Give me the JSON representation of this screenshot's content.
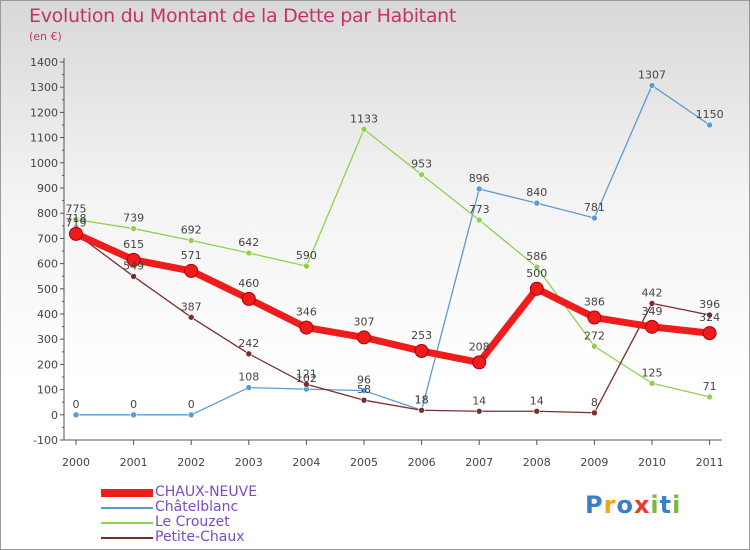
{
  "header": {
    "title": "Evolution du Montant de la Dette par Habitant",
    "subtitle": "(en €)"
  },
  "colors": {
    "title": "#c3326f",
    "legend_text": "#7a4cc4",
    "axis": "#555555",
    "label": "#444444"
  },
  "logo": {
    "text": "Proxiti",
    "letters": [
      {
        "ch": "P",
        "color": "#3c7fc4"
      },
      {
        "ch": "r",
        "color": "#f2a51a"
      },
      {
        "ch": "o",
        "color": "#3c7fc4"
      },
      {
        "ch": "x",
        "color": "#e23d2f"
      },
      {
        "ch": "i",
        "color": "#7cb93a"
      },
      {
        "ch": "t",
        "color": "#3c7fc4"
      },
      {
        "ch": "i",
        "color": "#7cb93a"
      }
    ]
  },
  "chart_data": {
    "type": "line",
    "title": "Evolution du Montant de la Dette par Habitant",
    "subtitle": "(en €)",
    "categories": [
      "2000",
      "2001",
      "2002",
      "2003",
      "2004",
      "2005",
      "2006",
      "2007",
      "2008",
      "2009",
      "2010",
      "2011"
    ],
    "ylim": [
      -100,
      1400
    ],
    "yticks": [
      -100,
      0,
      100,
      200,
      300,
      400,
      500,
      600,
      700,
      800,
      900,
      1000,
      1100,
      1200,
      1300,
      1400
    ],
    "legend_position": "bottom-left",
    "grid": false,
    "series": [
      {
        "name": "CHAUX-NEUVE",
        "color": "#ee1c1c",
        "width": 7,
        "markers": true,
        "values": [
          718,
          615,
          571,
          460,
          346,
          307,
          253,
          208,
          500,
          386,
          349,
          324
        ]
      },
      {
        "name": "Châtelblanc",
        "color": "#5b9bd5",
        "width": 1.3,
        "markers": true,
        "values": [
          0,
          0,
          0,
          108,
          102,
          96,
          18,
          896,
          840,
          781,
          1307,
          1150
        ]
      },
      {
        "name": "Le Crouzet",
        "color": "#8fd14f",
        "width": 1.3,
        "markers": true,
        "values": [
          775,
          739,
          692,
          642,
          590,
          1133,
          953,
          773,
          586,
          272,
          125,
          71
        ]
      },
      {
        "name": "Petite-Chaux",
        "color": "#7b2d2d",
        "width": 1.3,
        "markers": true,
        "values": [
          719,
          549,
          387,
          242,
          121,
          58,
          18,
          14,
          14,
          8,
          442,
          396
        ]
      }
    ]
  }
}
